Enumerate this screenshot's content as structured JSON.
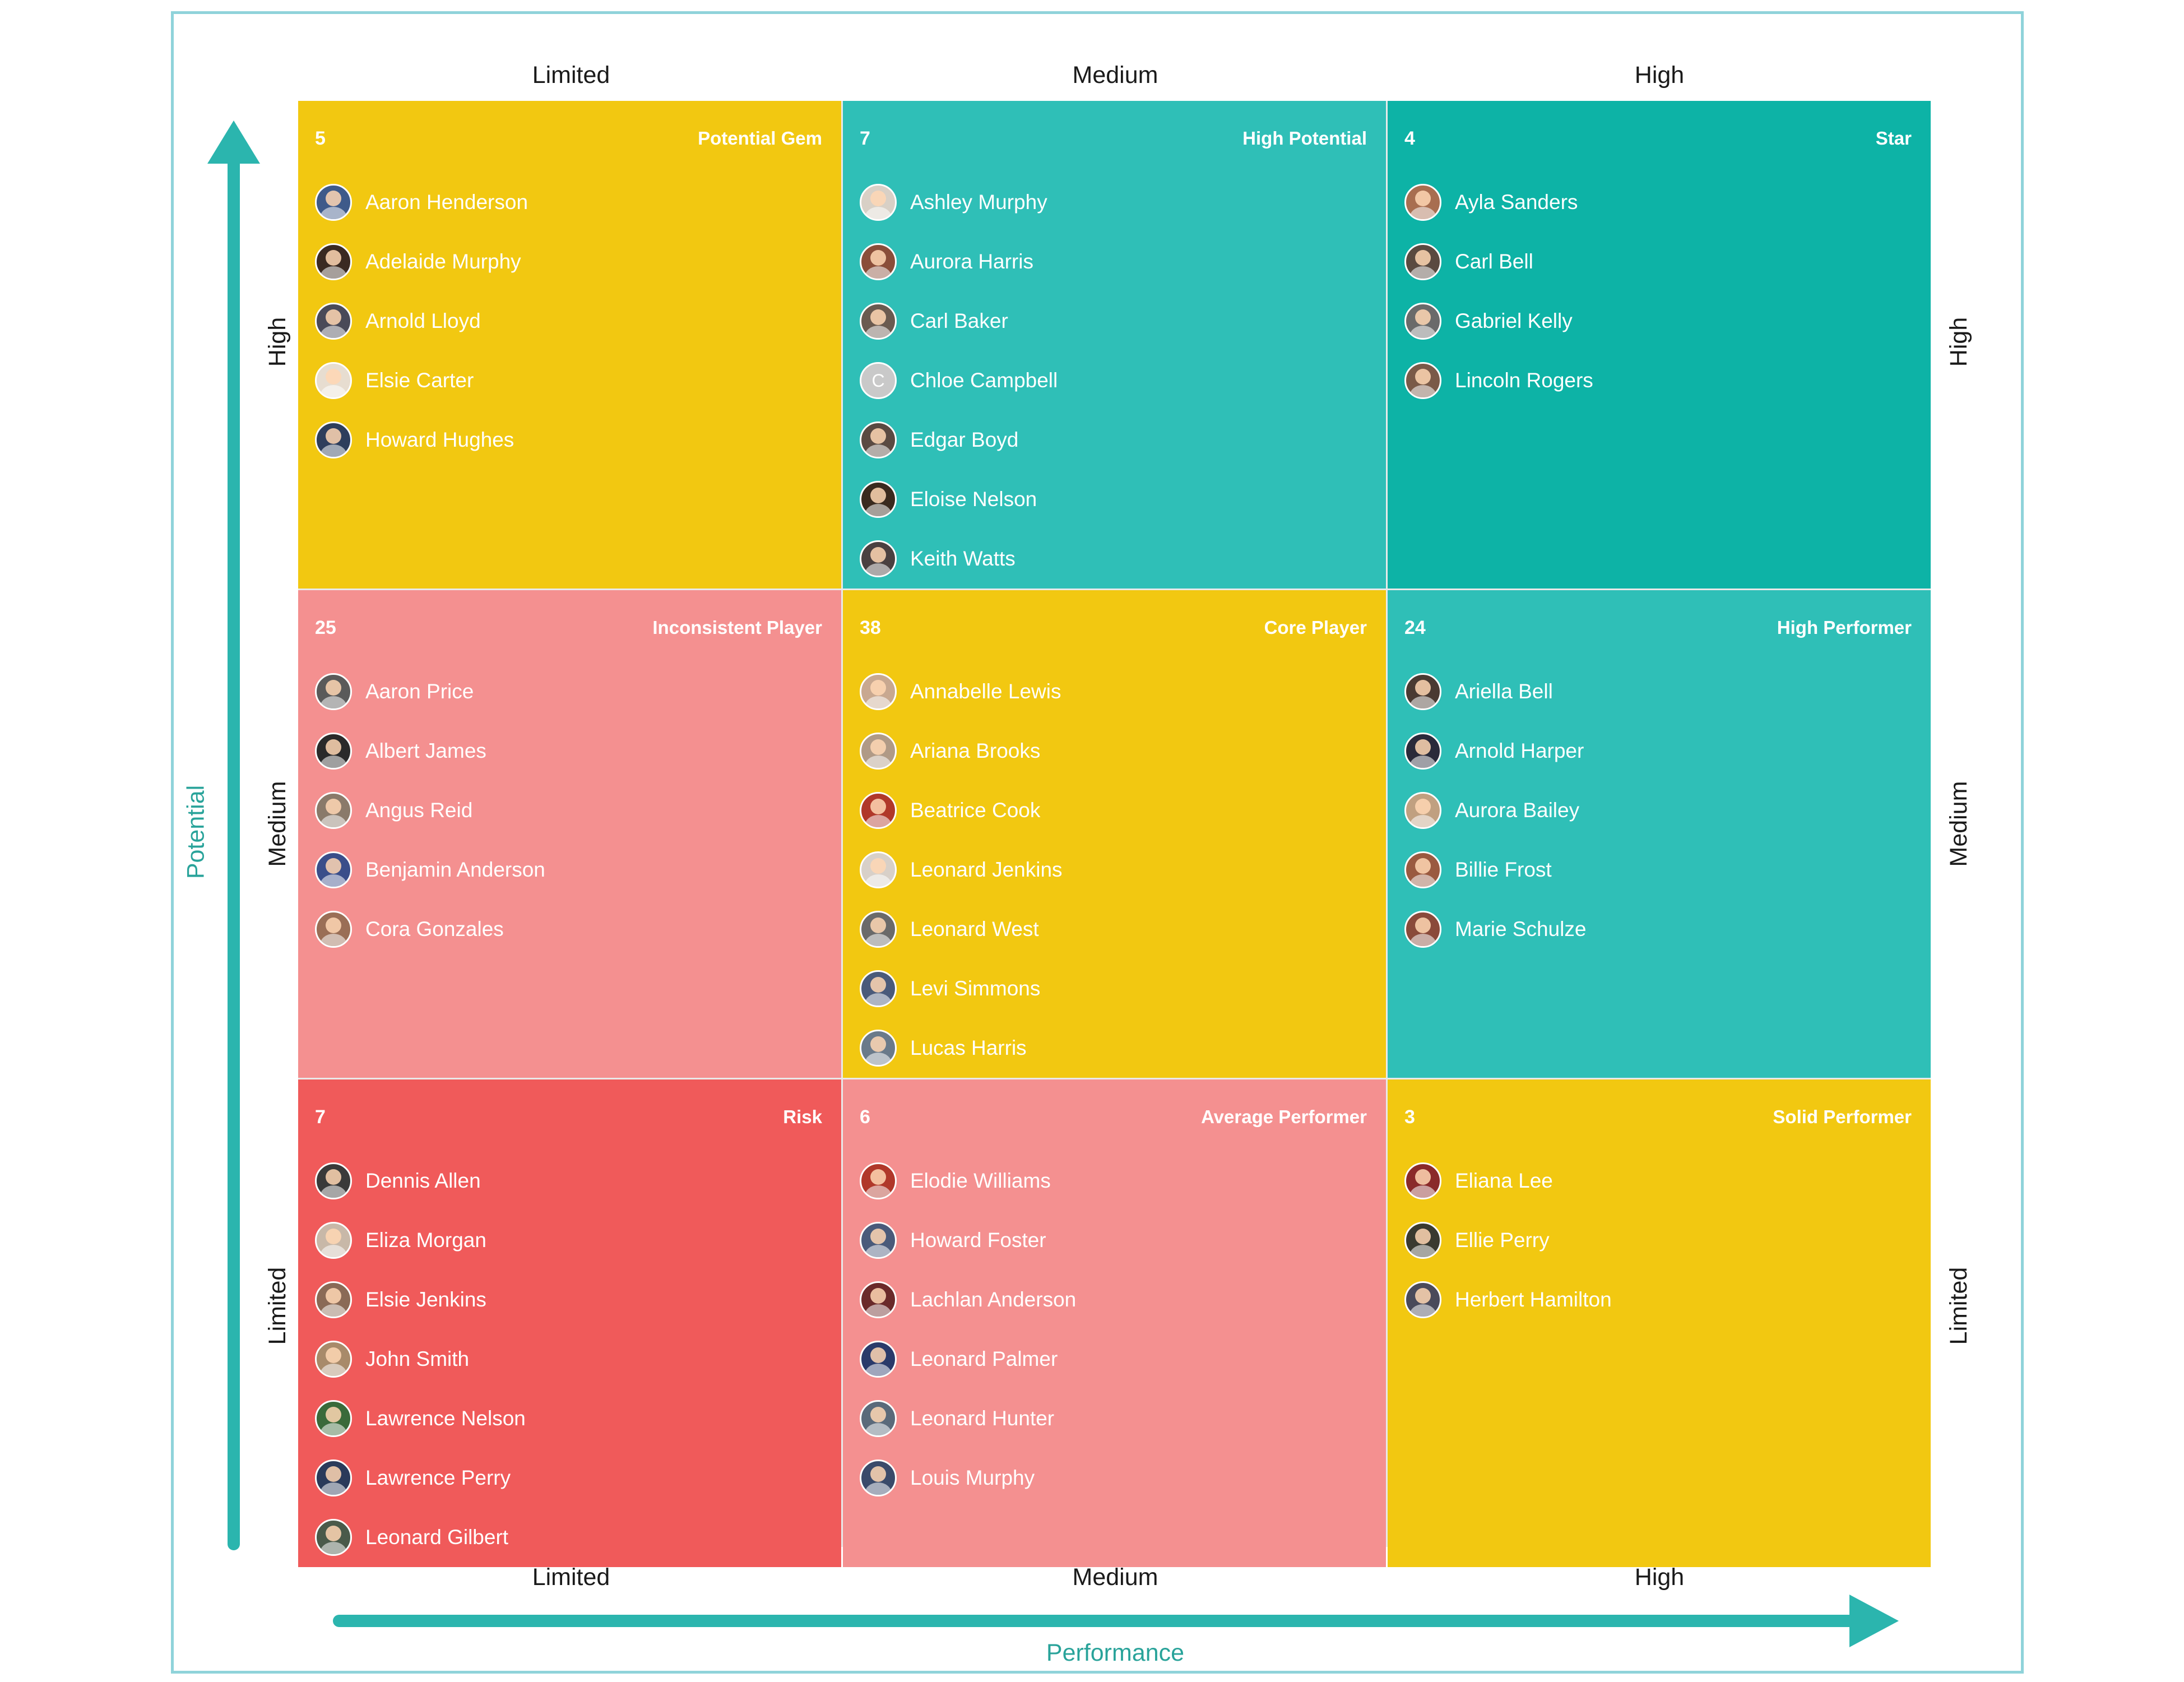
{
  "colors": {
    "yellow": "#f2c811",
    "teal": "#2fbfb7",
    "teal_dark": "#0db3a6",
    "pink": "#f49090",
    "red": "#f05a5a",
    "axis": "#2bb5ae",
    "frame": "#8fd3da"
  },
  "axes": {
    "x_title": "Performance",
    "y_title": "Potential",
    "columns": [
      "Limited",
      "Medium",
      "High"
    ],
    "rows": [
      "High",
      "Medium",
      "Limited"
    ]
  },
  "cells": [
    {
      "count": "5",
      "title": "Potential Gem",
      "color": "#f2c811",
      "people": [
        {
          "name": "Aaron Henderson",
          "avatar": "#3e5a8a"
        },
        {
          "name": "Adelaide Murphy",
          "avatar": "#3a2a22"
        },
        {
          "name": "Arnold Lloyd",
          "avatar": "#4a4a58"
        },
        {
          "name": "Elsie Carter",
          "avatar": "#e7ddd0"
        },
        {
          "name": "Howard Hughes",
          "avatar": "#2e3e5c"
        }
      ]
    },
    {
      "count": "7",
      "title": "High Potential",
      "color": "#2fbfb7",
      "people": [
        {
          "name": "Ashley Murphy",
          "avatar": "#d8d0c6"
        },
        {
          "name": "Aurora Harris",
          "avatar": "#8a4e3a"
        },
        {
          "name": "Carl Baker",
          "avatar": "#6a5a50"
        },
        {
          "name": "Chloe Campbell",
          "avatar": "#c9c9c9",
          "initial": "C"
        },
        {
          "name": "Edgar Boyd",
          "avatar": "#5a4a42"
        },
        {
          "name": "Eloise Nelson",
          "avatar": "#3a2a1e"
        },
        {
          "name": "Keith Watts",
          "avatar": "#4a4040"
        }
      ]
    },
    {
      "count": "4",
      "title": "Star",
      "color": "#0db3a6",
      "people": [
        {
          "name": "Ayla Sanders",
          "avatar": "#a86e50"
        },
        {
          "name": "Carl Bell",
          "avatar": "#5a4a40"
        },
        {
          "name": "Gabriel Kelly",
          "avatar": "#6a6a6a"
        },
        {
          "name": "Lincoln Rogers",
          "avatar": "#7a5a48"
        }
      ]
    },
    {
      "count": "25",
      "title": "Inconsistent Player",
      "color": "#f49090",
      "people": [
        {
          "name": "Aaron Price",
          "avatar": "#5a5a5a"
        },
        {
          "name": "Albert James",
          "avatar": "#2a2a2a"
        },
        {
          "name": "Angus Reid",
          "avatar": "#8a7a6a"
        },
        {
          "name": "Benjamin Anderson",
          "avatar": "#3a4e8a"
        },
        {
          "name": "Cora Gonzales",
          "avatar": "#9a6e56"
        }
      ]
    },
    {
      "count": "38",
      "title": "Core Player",
      "color": "#f2c811",
      "people": [
        {
          "name": "Annabelle Lewis",
          "avatar": "#c8a890"
        },
        {
          "name": "Ariana Brooks",
          "avatar": "#b09a86"
        },
        {
          "name": "Beatrice Cook",
          "avatar": "#b0382a"
        },
        {
          "name": "Leonard Jenkins",
          "avatar": "#d8d0c8"
        },
        {
          "name": "Leonard West",
          "avatar": "#6a6a6a"
        },
        {
          "name": "Levi Simmons",
          "avatar": "#4a5a7a"
        },
        {
          "name": "Lucas Harris",
          "avatar": "#6a7a8a"
        }
      ]
    },
    {
      "count": "24",
      "title": "High Performer",
      "color": "#2fbfb7",
      "people": [
        {
          "name": "Ariella Bell",
          "avatar": "#4a3a32"
        },
        {
          "name": "Arnold Harper",
          "avatar": "#2a2a3a"
        },
        {
          "name": "Aurora Bailey",
          "avatar": "#c0a080"
        },
        {
          "name": "Billie Frost",
          "avatar": "#9a5a40"
        },
        {
          "name": "Marie Schulze",
          "avatar": "#8a4a3a"
        }
      ]
    },
    {
      "count": "7",
      "title": "Risk",
      "color": "#f05a5a",
      "people": [
        {
          "name": "Dennis Allen",
          "avatar": "#3a3a3a"
        },
        {
          "name": "Eliza Morgan",
          "avatar": "#c8b8a8"
        },
        {
          "name": "Elsie Jenkins",
          "avatar": "#8a6a56"
        },
        {
          "name": "John Smith",
          "avatar": "#a88a6a"
        },
        {
          "name": "Lawrence Nelson",
          "avatar": "#3a6a3a"
        },
        {
          "name": "Lawrence Perry",
          "avatar": "#2a3a5a"
        },
        {
          "name": "Leonard Gilbert",
          "avatar": "#4a5a4a"
        }
      ]
    },
    {
      "count": "6",
      "title": "Average Performer",
      "color": "#f49090",
      "people": [
        {
          "name": "Elodie Williams",
          "avatar": "#b0382a"
        },
        {
          "name": "Howard Foster",
          "avatar": "#4a5a7a"
        },
        {
          "name": "Lachlan Anderson",
          "avatar": "#6a2a2a"
        },
        {
          "name": "Leonard Palmer",
          "avatar": "#2a3a6a"
        },
        {
          "name": "Leonard Hunter",
          "avatar": "#5a6a7a"
        },
        {
          "name": "Louis Murphy",
          "avatar": "#3a4a6a"
        }
      ]
    },
    {
      "count": "3",
      "title": "Solid Performer",
      "color": "#f2c811",
      "people": [
        {
          "name": "Eliana Lee",
          "avatar": "#8a2a2a"
        },
        {
          "name": "Ellie Perry",
          "avatar": "#3a3a30"
        },
        {
          "name": "Herbert Hamilton",
          "avatar": "#4a4a5a"
        }
      ]
    }
  ]
}
